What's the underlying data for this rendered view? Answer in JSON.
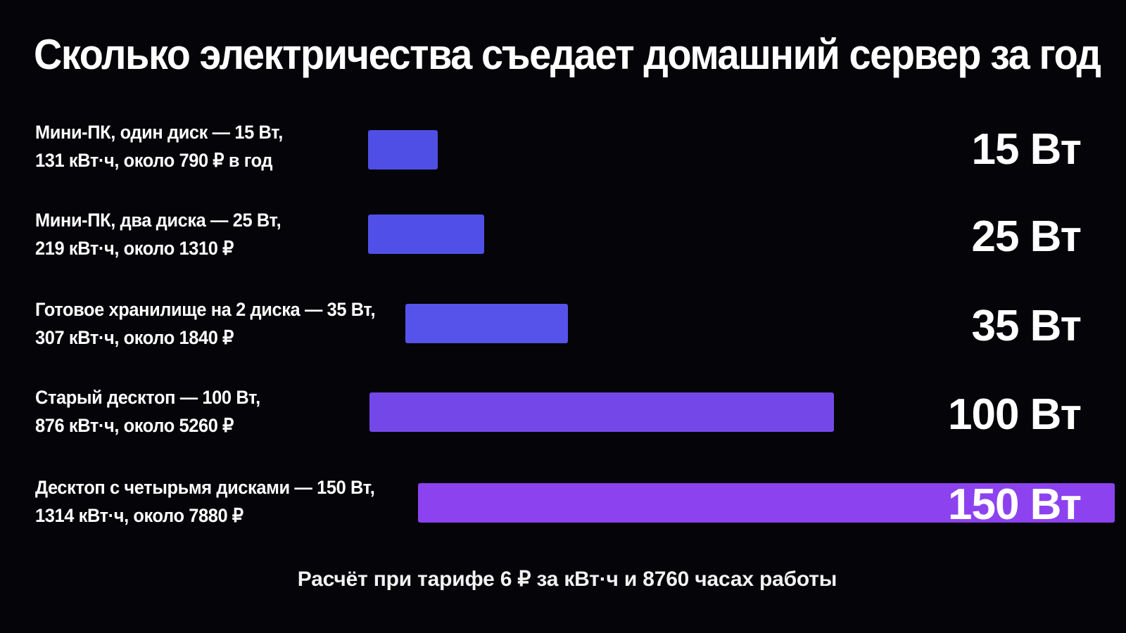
{
  "chart_data": {
    "type": "bar",
    "orientation": "horizontal",
    "title": "Сколько электричества съедает домашний сервер за год",
    "categories": [
      "Мини-ПК, один диск — 15 Вт, 131 кВт·ч, около 790 ₽ в год",
      "Мини-ПК, два диска — 25 Вт, 219 кВт·ч, около 1310 ₽",
      "Готовое хранилище на 2 диска — 35 Вт, 307 кВт·ч, около 1840 ₽",
      "Старый десктоп — 100 Вт, 876 кВт·ч, около 5260 ₽",
      "Десктоп с четырьмя дисками — 150 Вт, 1314 кВт·ч, около 7880 ₽"
    ],
    "values": [
      15,
      25,
      35,
      100,
      150
    ],
    "unit": "Вт",
    "rows": [
      {
        "line1": "Мини-ПК, один диск — 15 Вт,",
        "line2": "131 кВт·ч, около 790 ₽ в год",
        "value_label": "15 Вт",
        "watts": 15,
        "color": "#4f4fe6"
      },
      {
        "line1": "Мини-ПК, два диска — 25 Вт,",
        "line2": "219 кВт·ч, около 1310 ₽",
        "value_label": "25 Вт",
        "watts": 25,
        "color": "#5050e8"
      },
      {
        "line1": "Готовое хранилище на 2 диска — 35 Вт,",
        "line2": "307 кВт·ч, около 1840 ₽",
        "value_label": "35 Вт",
        "watts": 35,
        "color": "#5653ea"
      },
      {
        "line1": "Старый десктоп — 100 Вт,",
        "line2": "876 кВт·ч, около 5260 ₽",
        "value_label": "100 Вт",
        "watts": 100,
        "color": "#7448e8"
      },
      {
        "line1": "Десктоп с четырьмя дисками — 150 Вт,",
        "line2": "1314 кВт·ч, около 7880 ₽",
        "value_label": "150 Вт",
        "watts": 150,
        "color": "#8d42ef"
      }
    ],
    "footnote": "Расчёт при тарифе 6 ₽ за кВт·ч и 8760 часах работы",
    "grid": false,
    "legend": "none"
  },
  "colors": {
    "background": "#050408",
    "text": "#ffffff",
    "bar_start": "#4f4fe6",
    "bar_end": "#9944f2"
  }
}
